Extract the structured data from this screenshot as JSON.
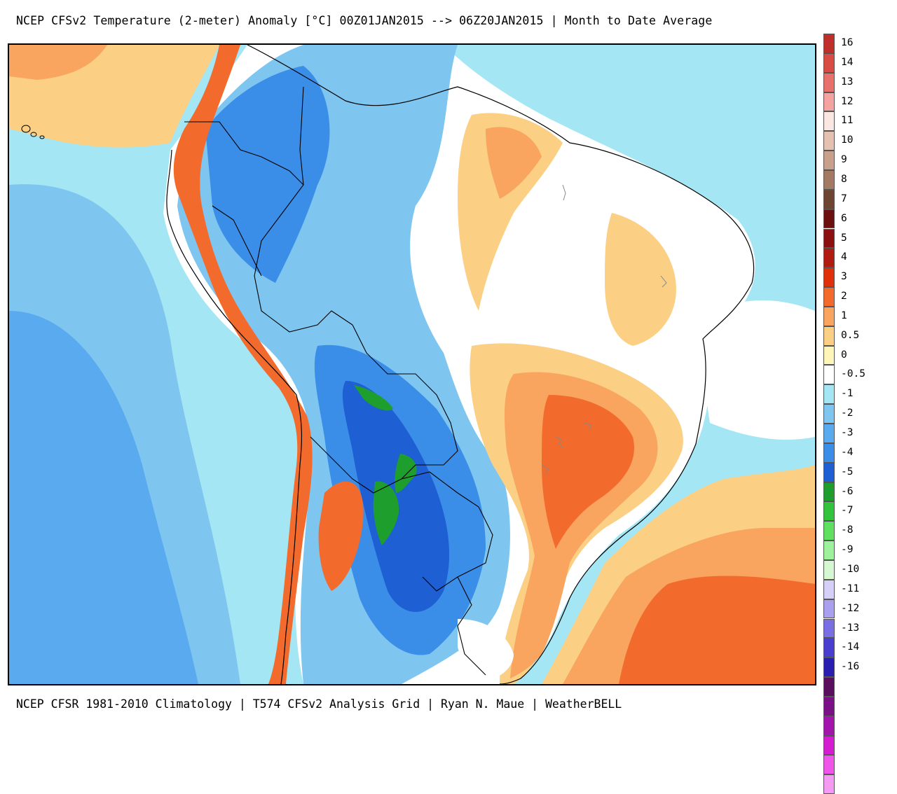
{
  "header": {
    "title": "NCEP CFSv2 Temperature (2-meter) Anomaly  [°C] 00Z01JAN2015 --> 06Z20JAN2015 | Month to Date Average"
  },
  "footer": {
    "credit": "NCEP CFSR 1981-2010 Climatology | T574 CFSv2 Analysis Grid | Ryan N. Maue | WeatherBELL"
  },
  "map": {
    "region": "South America",
    "variable": "2-meter temperature anomaly",
    "units": "°C",
    "period": "00Z01JAN2015 --> 06Z20JAN2015",
    "colors": {
      "ocean_default": "#a4e6f4",
      "warm_mild": "#fbe39a",
      "warm_moderate": "#f9a45f",
      "warm_strong": "#f0622e",
      "neutral": "#ffffff",
      "cool_mild": "#7ec6f0",
      "cool_moderate": "#3b8ee8",
      "cool_strong": "#1f5fd4",
      "very_cold": "#22aa2e",
      "borders": "#000000",
      "lakes": "#888888"
    }
  },
  "legend": {
    "items": [
      {
        "label": "16",
        "color": "#c0302a"
      },
      {
        "label": "14",
        "color": "#d94c44"
      },
      {
        "label": "13",
        "color": "#e8716c"
      },
      {
        "label": "12",
        "color": "#f5a3a0"
      },
      {
        "label": "11",
        "color": "#fbe7e2"
      },
      {
        "label": "10",
        "color": "#e5c1b2"
      },
      {
        "label": "9",
        "color": "#c8a08c"
      },
      {
        "label": "8",
        "color": "#a57a62"
      },
      {
        "label": "7",
        "color": "#6e4432"
      },
      {
        "label": "6",
        "color": "#6b0f0f"
      },
      {
        "label": "5",
        "color": "#8b1010"
      },
      {
        "label": "4",
        "color": "#b01b12"
      },
      {
        "label": "3",
        "color": "#e0300a"
      },
      {
        "label": "2",
        "color": "#f26b2c"
      },
      {
        "label": "1",
        "color": "#f9a45f"
      },
      {
        "label": "0.5",
        "color": "#fbd085"
      },
      {
        "label": "0",
        "color": "#fef5b8"
      },
      {
        "label": "-0.5",
        "color": "#ffffff"
      },
      {
        "label": "-1",
        "color": "#a4e6f4"
      },
      {
        "label": "-2",
        "color": "#7ec6f0"
      },
      {
        "label": "-3",
        "color": "#5aaaf0"
      },
      {
        "label": "-4",
        "color": "#3b8ee8"
      },
      {
        "label": "-5",
        "color": "#1f5fd4"
      },
      {
        "label": "-6",
        "color": "#1e9e2c"
      },
      {
        "label": "-7",
        "color": "#33c43d"
      },
      {
        "label": "-8",
        "color": "#5fe05f"
      },
      {
        "label": "-9",
        "color": "#9ef29b"
      },
      {
        "label": "-10",
        "color": "#d5f8d3"
      },
      {
        "label": "-11",
        "color": "#d6d0f8"
      },
      {
        "label": "-12",
        "color": "#aaa0f0"
      },
      {
        "label": "-13",
        "color": "#7a6ee4"
      },
      {
        "label": "-14",
        "color": "#4a3ed0"
      },
      {
        "label": "-16",
        "color": "#2a1eb0"
      },
      {
        "label": "",
        "color": "#5a0e5e"
      },
      {
        "label": "",
        "color": "#7a0f86"
      },
      {
        "label": "",
        "color": "#a214ac"
      },
      {
        "label": "",
        "color": "#d41cd0"
      },
      {
        "label": "",
        "color": "#ee55e8"
      },
      {
        "label": "",
        "color": "#f59af2"
      }
    ]
  }
}
